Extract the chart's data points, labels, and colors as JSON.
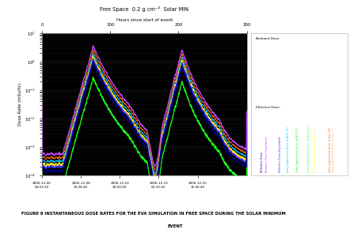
{
  "title_top": "Free Space  0.2 g cm⁻²  Solar MIN",
  "xlabel_top": "Hours since start of event",
  "ylabel": "Dose Rate (mSv/hr)",
  "xtick_top_vals": [
    0,
    100,
    200,
    300
  ],
  "xtick_top_labels": [
    "0",
    "100",
    "200",
    "300"
  ],
  "xtick_bottom_vals": [
    0,
    57,
    114,
    171,
    228
  ],
  "xtick_bottom_labels": [
    "2006-12-06\n04:53:20",
    "2006-12-08\n13:26:40",
    "2006-12-10\n20:00:00",
    "2006-12-13\n02:33:20",
    "2006-12-15\n11:06:40"
  ],
  "ylim": [
    0.0001,
    10
  ],
  "xlim": [
    0,
    300
  ],
  "caption_line1": "FIGURE 9 INSTANTANEOUS DOSE RATES FOR THE EVA SIMULATION IN FREE SPACE DURING THE SOLAR MINIMUM",
  "caption_line2": "EVENT",
  "ambient_title": "Ambient Dose:",
  "effective_title": "Effective Dose:",
  "ambient_items": [
    {
      "label": "Ambient Dose Equivalent",
      "color": "#cc44ff"
    },
    {
      "label": "Grey Equivalent Dose in BFO (D)",
      "color": "#00ccff"
    },
    {
      "label": "Grey Equivalent Dose in Skin (D)",
      "color": "#44ff44"
    },
    {
      "label": "Grey Equivalent Dose in Eye (D)",
      "color": "#ff6600"
    }
  ],
  "effective_items": [
    {
      "label": "Effective Dose",
      "color": "#000080"
    },
    {
      "label": "Effective Dose Equivalent",
      "color": "#3333ff"
    },
    {
      "label": "Grey Equivalent Dose in BFO (T)",
      "color": "#00ff00"
    },
    {
      "label": "Grey Equivalent Dose in Skin (T)",
      "color": "#ffff00"
    },
    {
      "label": "Grey Equivalent Dose in Eye (T)",
      "color": "#ffaa66"
    }
  ],
  "plot_bg": "#000000",
  "fig_bg": "#ffffff"
}
